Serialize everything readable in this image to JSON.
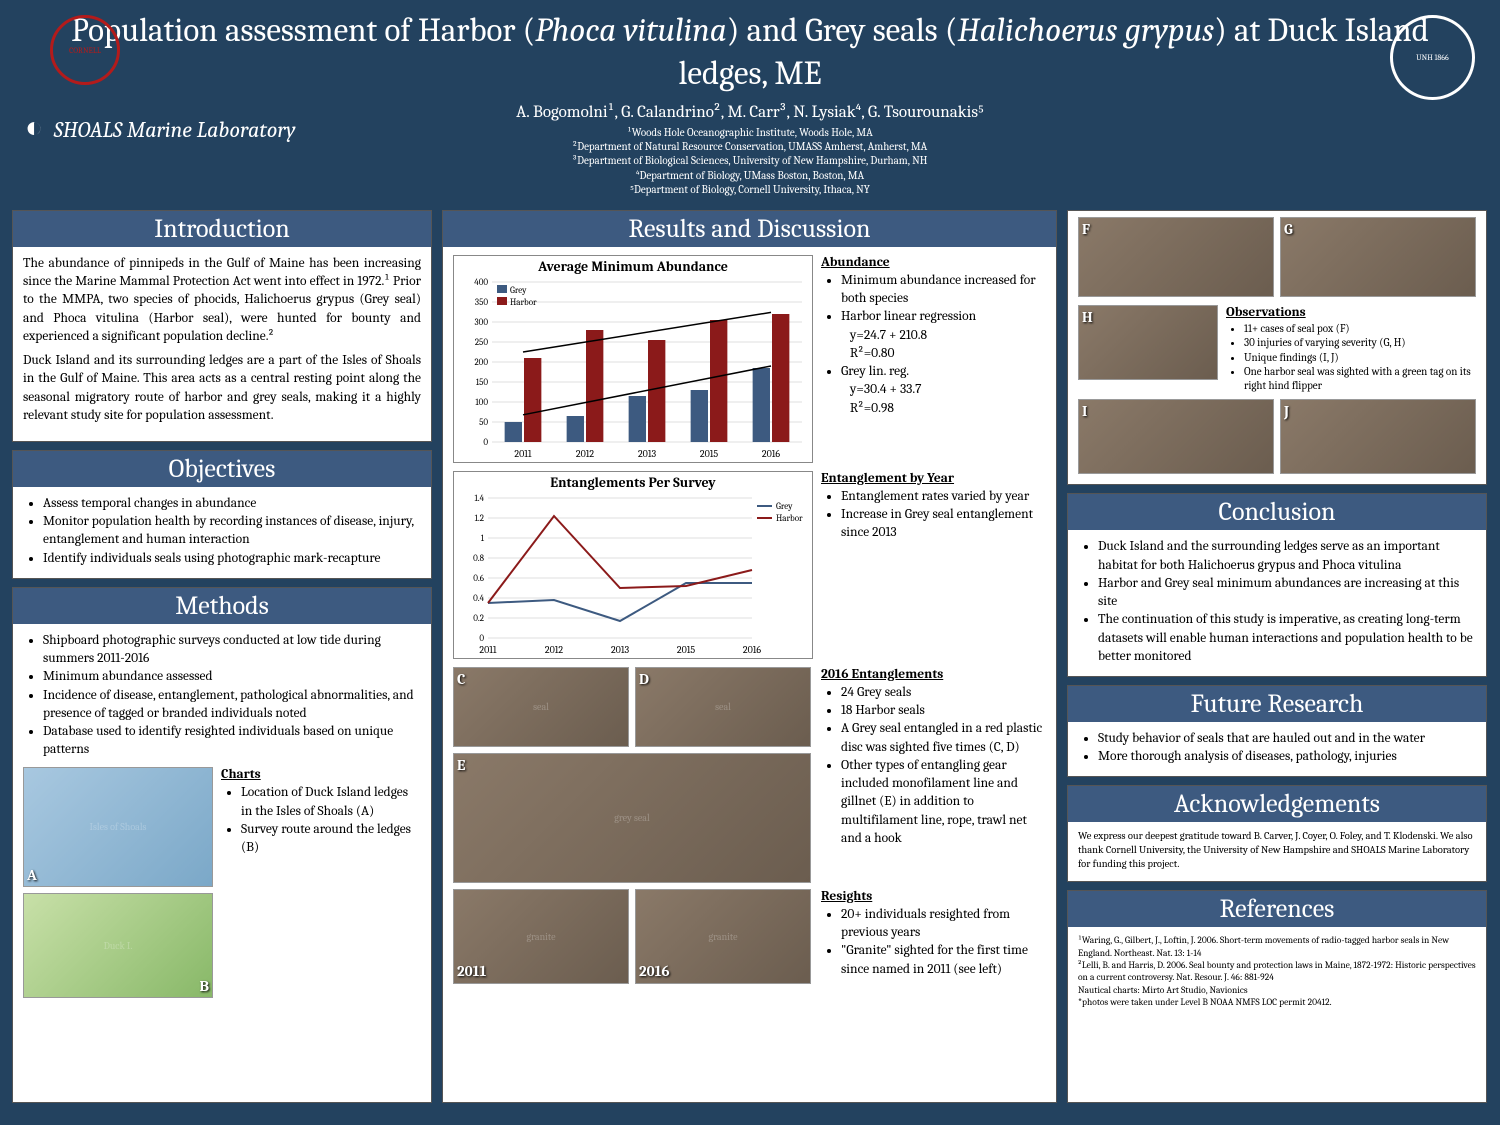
{
  "header": {
    "title_pre": "Population assessment of Harbor (",
    "title_sp1": "Phoca vitulina",
    "title_mid": ") and Grey seals (",
    "title_sp2": "Halichoerus grypus",
    "title_post": ") at Duck Island ledges, ME",
    "authors": "A.  Bogomolni¹, G. Calandrino², M. Carr³, N. Lysiak⁴, G. Tsourounakis⁵",
    "aff1": "¹Woods Hole Oceanographic Institute, Woods Hole, MA",
    "aff2": "²Department of Natural Resource Conservation, UMASS Amherst, Amherst, MA",
    "aff3": "³Department of Biological Sciences, University of New Hampshire, Durham, NH",
    "aff4": "⁴Department of Biology, UMass Boston, Boston, MA",
    "aff5": "⁵Department of Biology, Cornell University, Ithaca, NY",
    "logo_cornell": "CORNELL",
    "logo_unh": "UNH 1866",
    "logo_shoals": "SHOALS Marine Laboratory"
  },
  "intro": {
    "title": "Introduction",
    "p1": "The abundance of pinnipeds in the Gulf of Maine has been increasing since the Marine Mammal Protection Act went into effect in 1972.¹ Prior to the MMPA, two species of phocids, Halichoerus grypus (Grey seal) and Phoca vitulina (Harbor seal), were hunted for bounty and experienced a significant population decline.²",
    "p2": "Duck Island and its surrounding ledges are a part of the Isles of Shoals in the Gulf of Maine. This area acts as a central resting point along the seasonal migratory route of harbor and grey seals, making it a highly relevant study site for population assessment."
  },
  "objectives": {
    "title": "Objectives",
    "items": [
      "Assess temporal changes in abundance",
      "Monitor population health by recording instances of disease, injury, entanglement and human interaction",
      "Identify individuals seals using photographic mark-recapture"
    ]
  },
  "methods": {
    "title": "Methods",
    "items": [
      "Shipboard photographic surveys conducted at low tide during summers 2011-2016",
      "Minimum abundance assessed",
      "Incidence of disease, entanglement, pathological abnormalities, and presence of tagged or branded individuals noted",
      "Database used to identify resighted individuals based on unique patterns"
    ],
    "charts_hd": "Charts",
    "charts": [
      "Location of Duck Island ledges in the Isles of Shoals (A)",
      "Survey route around the ledges (B)"
    ],
    "lblA": "A",
    "lblB": "B"
  },
  "results": {
    "title": "Results and Discussion",
    "abundance_chart": {
      "title": "Average Minimum Abundance",
      "type": "bar+line",
      "years": [
        "2011",
        "2012",
        "2013",
        "2015",
        "2016"
      ],
      "grey": [
        50,
        65,
        115,
        130,
        185
      ],
      "harbor": [
        210,
        280,
        255,
        305,
        320
      ],
      "grey_color": "#3d5a80",
      "harbor_color": "#8b1a1a",
      "ylim": [
        0,
        400
      ],
      "ytick_step": 50,
      "bg": "#ffffff",
      "grid": "#bfbfbf",
      "trend_grey": [
        [
          0,
          68
        ],
        [
          4,
          190
        ]
      ],
      "trend_harbor": [
        [
          0,
          225
        ],
        [
          4,
          324
        ]
      ]
    },
    "abund_hd": "Abundance",
    "abund_li": [
      "Minimum abundance increased for both species",
      "Harbor linear regression",
      "   y=24.7 + 210.8",
      "   R²=0.80",
      "Grey lin. reg.",
      "   y=30.4 + 33.7",
      "   R²=0.98"
    ],
    "entangle_chart": {
      "title": "Entanglements Per Survey",
      "type": "line",
      "years": [
        "2011",
        "2012",
        "2013",
        "2015",
        "2016"
      ],
      "grey": [
        0.35,
        0.38,
        0.17,
        0.55,
        0.55
      ],
      "harbor": [
        0.35,
        1.22,
        0.5,
        0.52,
        0.68
      ],
      "grey_color": "#3d5a80",
      "harbor_color": "#8b1a1a",
      "ylim": [
        0,
        1.4
      ],
      "ytick_step": 0.2
    },
    "entyear_hd": "Entanglement by Year",
    "entyear_li": [
      "Entanglement rates varied by year",
      "Increase in Grey seal entanglement since 2013"
    ],
    "ent2016_hd": "2016 Entanglements",
    "ent2016_li": [
      "24 Grey seals",
      "18 Harbor seals",
      "A Grey seal entangled in a red plastic disc was sighted five times (C, D)",
      "Other types of entangling gear included monofilament line and gillnet (E) in addition to multifilament line, rope, trawl net and a hook"
    ],
    "resight_hd": "Resights",
    "resight_li": [
      "20+ individuals resighted from previous years",
      "\"Granite\" sighted for the first time since named in 2011 (see left)"
    ],
    "lblC": "C",
    "lblD": "D",
    "lblE": "E",
    "yr2011": "2011",
    "yr2016": "2016"
  },
  "observations": {
    "hd": "Observations",
    "li": [
      "11+ cases of seal pox (F)",
      "30 injuries of varying severity (G, H)",
      "Unique findings (I, J)",
      "One harbor seal was sighted with a green tag on its right hind flipper"
    ],
    "lblF": "F",
    "lblG": "G",
    "lblH": "H",
    "lblI": "I",
    "lblJ": "J"
  },
  "conclusion": {
    "title": "Conclusion",
    "li": [
      "Duck Island and the surrounding ledges serve as an important habitat for both Halichoerus grypus and Phoca vitulina",
      "Harbor and Grey seal minimum abundances are increasing at this site",
      "The continuation of this study is imperative, as creating long-term datasets will enable human interactions and population health to be better monitored"
    ]
  },
  "future": {
    "title": "Future Research",
    "li": [
      "Study behavior of seals that are hauled out and in the water",
      "More thorough analysis of diseases, pathology, injuries"
    ]
  },
  "ack": {
    "title": "Acknowledgements",
    "text": "We express our deepest gratitude toward B. Carver, J. Coyer, O. Foley, and T. Klodenski. We also thank Cornell University, the University of New Hampshire and SHOALS Marine Laboratory for funding this project."
  },
  "refs": {
    "title": "References",
    "r1": "¹Waring, G., Gilbert, J., Loftin, J. 2006. Short-term movements of radio-tagged harbor seals in New England. Northeast. Nat. 13: 1-14",
    "r2": "²Lelli, B. and Harris, D. 2006. Seal bounty and protection laws in Maine, 1872-1972: Historic perspectives on a current controversy. Nat. Resour. J. 46: 881-924",
    "r3": "Nautical charts: Mirto Art Studio, Navionics",
    "r4": "*photos were taken under Level B NOAA NMFS LOC permit 20412."
  }
}
